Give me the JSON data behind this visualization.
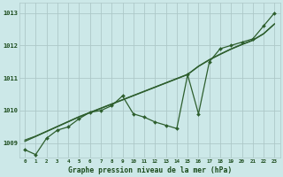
{
  "title": "Graphe pression niveau de la mer (hPa)",
  "background_color": "#cce8e8",
  "grid_color": "#adc8c8",
  "line_color": "#2d5e2d",
  "text_color": "#1a4a1a",
  "xlim": [
    -0.5,
    23.5
  ],
  "ylim": [
    1008.55,
    1013.3
  ],
  "xticks": [
    0,
    1,
    2,
    3,
    4,
    5,
    6,
    7,
    8,
    9,
    10,
    11,
    12,
    13,
    14,
    15,
    16,
    17,
    18,
    19,
    20,
    21,
    22,
    23
  ],
  "yticks": [
    1009,
    1010,
    1011,
    1012,
    1013
  ],
  "main_data": [
    1008.8,
    1008.65,
    1009.15,
    1009.4,
    1009.5,
    1009.75,
    1009.95,
    1010.0,
    1010.15,
    1010.45,
    1009.9,
    1009.8,
    1009.65,
    1009.55,
    1009.45,
    1011.1,
    1009.9,
    1011.5,
    1011.9,
    1012.0,
    1012.1,
    1012.2,
    1012.6,
    1013.0
  ],
  "trend1": [
    1009.05,
    1009.2,
    1009.35,
    1009.5,
    1009.65,
    1009.8,
    1009.93,
    1010.06,
    1010.19,
    1010.32,
    1010.45,
    1010.58,
    1010.71,
    1010.84,
    1010.97,
    1011.1,
    1011.35,
    1011.55,
    1011.72,
    1011.88,
    1012.02,
    1012.15,
    1012.35,
    1012.65
  ],
  "trend2": [
    1009.1,
    1009.22,
    1009.37,
    1009.52,
    1009.67,
    1009.82,
    1009.95,
    1010.08,
    1010.21,
    1010.34,
    1010.47,
    1010.6,
    1010.73,
    1010.86,
    1010.99,
    1011.12,
    1011.37,
    1011.57,
    1011.74,
    1011.9,
    1012.04,
    1012.17,
    1012.37,
    1012.67
  ],
  "trend3": [
    1009.07,
    1009.21,
    1009.36,
    1009.51,
    1009.66,
    1009.81,
    1009.94,
    1010.07,
    1010.2,
    1010.33,
    1010.46,
    1010.59,
    1010.72,
    1010.85,
    1010.98,
    1011.11,
    1011.36,
    1011.56,
    1011.73,
    1011.89,
    1012.03,
    1012.16,
    1012.36,
    1012.66
  ]
}
